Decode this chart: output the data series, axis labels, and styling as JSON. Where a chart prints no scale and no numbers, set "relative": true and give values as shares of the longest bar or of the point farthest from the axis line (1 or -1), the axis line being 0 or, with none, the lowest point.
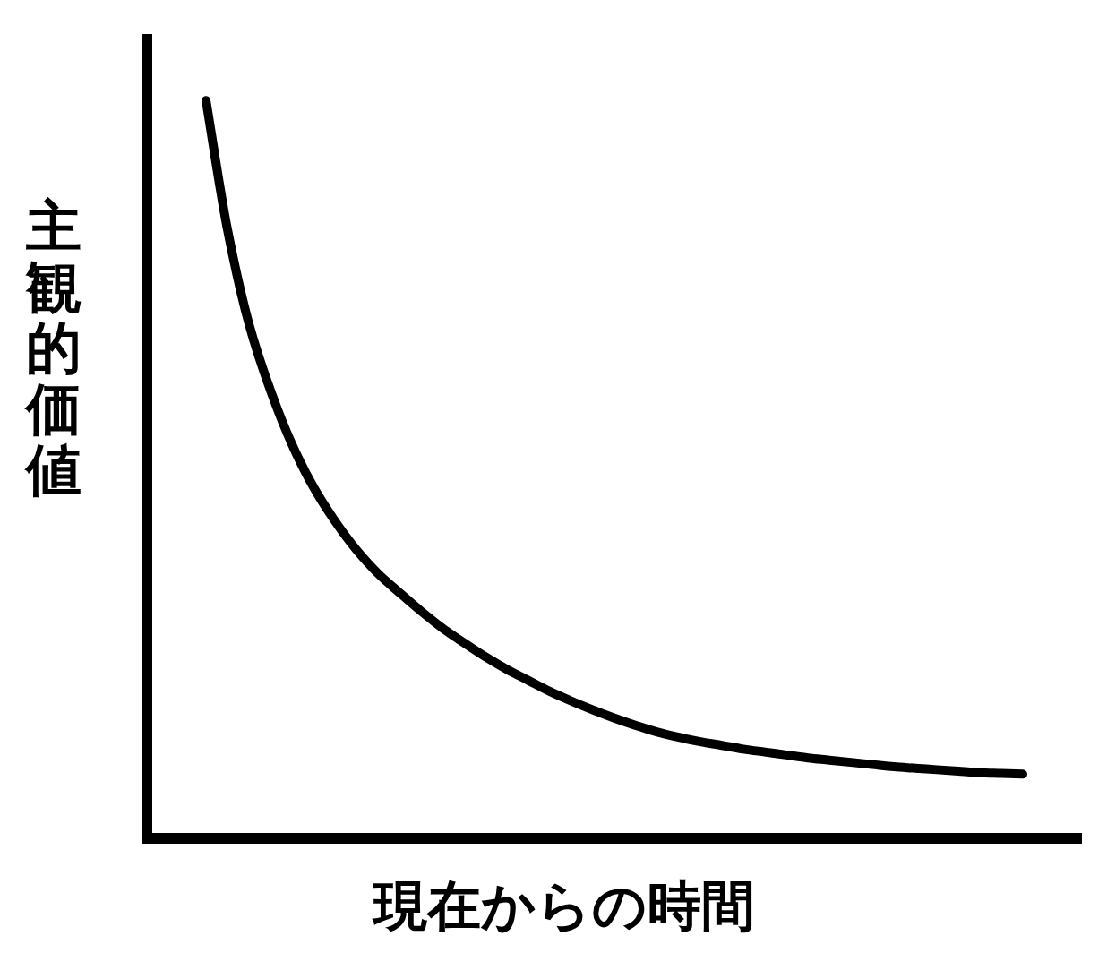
{
  "chart_data": {
    "type": "line",
    "xlabel": "現在からの時間",
    "ylabel": "主観的価値",
    "relative": true,
    "categories": [
      null,
      null,
      null,
      null,
      null,
      null,
      null,
      null,
      null,
      null,
      null,
      null,
      null,
      null,
      null,
      null,
      null,
      null,
      null,
      null,
      null,
      null,
      null,
      null,
      null,
      null,
      null,
      null,
      null,
      null,
      null,
      null,
      null,
      null,
      null,
      null,
      null,
      null,
      null
    ],
    "color": "#000000",
    "values": [
      1,
      0.825,
      0.697,
      0.607,
      0.534,
      0.476,
      0.43,
      0.391,
      0.359,
      0.333,
      0.308,
      0.285,
      0.265,
      0.246,
      0.229,
      0.214,
      0.199,
      0.186,
      0.174,
      0.163,
      0.153,
      0.144,
      0.137,
      0.131,
      0.126,
      0.121,
      0.117,
      0.113,
      0.109,
      0.106,
      0.103,
      0.1,
      0.097,
      0.095,
      0.093,
      0.091,
      0.089,
      0.088,
      0.087
    ]
  }
}
